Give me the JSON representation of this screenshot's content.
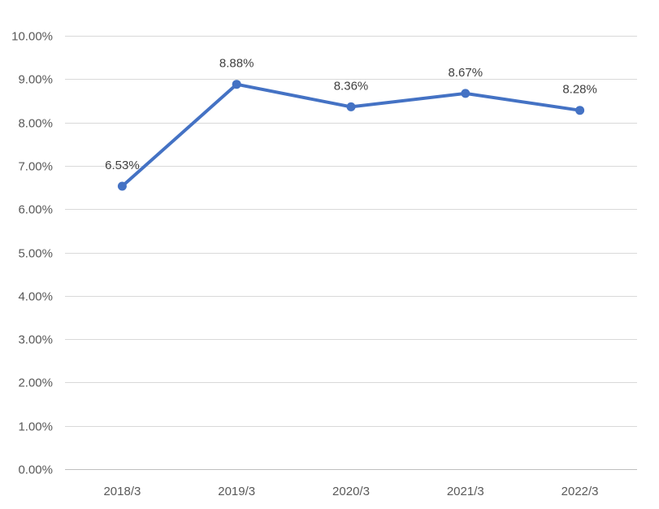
{
  "chart_data": {
    "type": "line",
    "categories": [
      "2018/3",
      "2019/3",
      "2020/3",
      "2021/3",
      "2022/3"
    ],
    "series": [
      {
        "values": [
          6.53,
          8.88,
          8.36,
          8.67,
          8.28
        ],
        "data_labels": [
          "6.53%",
          "8.88%",
          "8.36%",
          "8.67%",
          "8.28%"
        ],
        "color": "#4472c4"
      }
    ],
    "ylim": [
      0,
      10
    ],
    "y_ticks": [
      0,
      1,
      2,
      3,
      4,
      5,
      6,
      7,
      8,
      9,
      10
    ],
    "y_tick_labels": [
      "0.00%",
      "1.00%",
      "2.00%",
      "3.00%",
      "4.00%",
      "5.00%",
      "6.00%",
      "7.00%",
      "8.00%",
      "9.00%",
      "10.00%"
    ],
    "grid": "horizontal",
    "legend": "none",
    "title": "",
    "xlabel": "",
    "ylabel": ""
  }
}
